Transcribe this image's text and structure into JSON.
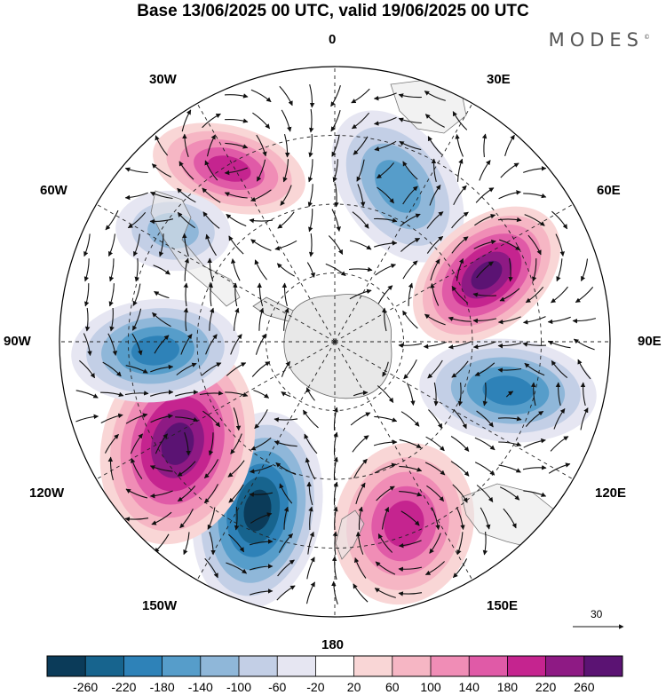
{
  "title": "Base 13/06/2025 00 UTC, valid 19/06/2025 00 UTC",
  "brand": "MODES",
  "brand_mark": "©",
  "longitude_labels": {
    "lon_0": "0",
    "lon_30e": "30E",
    "lon_60e": "60E",
    "lon_90e": "90E",
    "lon_120e": "120E",
    "lon_150e": "150E",
    "lon_180": "180",
    "lon_150w": "150W",
    "lon_120w": "120W",
    "lon_90w": "90W",
    "lon_60w": "60W",
    "lon_30w": "30W"
  },
  "reference_vector": {
    "label": "30"
  },
  "colorbar": {
    "colors": [
      "#0b3b59",
      "#17648e",
      "#2e82b8",
      "#569dca",
      "#8fb7d9",
      "#c3cfe6",
      "#e6e6f2",
      "#ffffff",
      "#f9d6d6",
      "#f6b6c4",
      "#f08db6",
      "#e05aa7",
      "#c5248f",
      "#8e1a84",
      "#5b1373"
    ],
    "labels": [
      "-260",
      "-220",
      "-180",
      "-140",
      "-100",
      "-60",
      "-20",
      "20",
      "60",
      "100",
      "140",
      "180",
      "220",
      "260"
    ]
  },
  "anomaly_centers": [
    {
      "name": "positive-anomaly-south-atlantic",
      "sign": "positive",
      "peak": "180"
    },
    {
      "name": "negative-anomaly-south-of-africa",
      "sign": "negative",
      "peak": "-140"
    },
    {
      "name": "positive-anomaly-southern-indian-ocean",
      "sign": "positive",
      "peak": "260"
    },
    {
      "name": "negative-anomaly-south-of-australia",
      "sign": "negative",
      "peak": "-180"
    },
    {
      "name": "positive-anomaly-tasman-sea",
      "sign": "positive",
      "peak": "180"
    },
    {
      "name": "negative-anomaly-south-pacific",
      "sign": "negative",
      "peak": "-260"
    },
    {
      "name": "positive-anomaly-southeast-pacific",
      "sign": "positive",
      "peak": "260"
    },
    {
      "name": "negative-anomaly-southwest-of-south-america",
      "sign": "negative",
      "peak": "-180"
    },
    {
      "name": "negative-anomaly-argentina",
      "sign": "negative",
      "peak": "-100"
    }
  ]
}
